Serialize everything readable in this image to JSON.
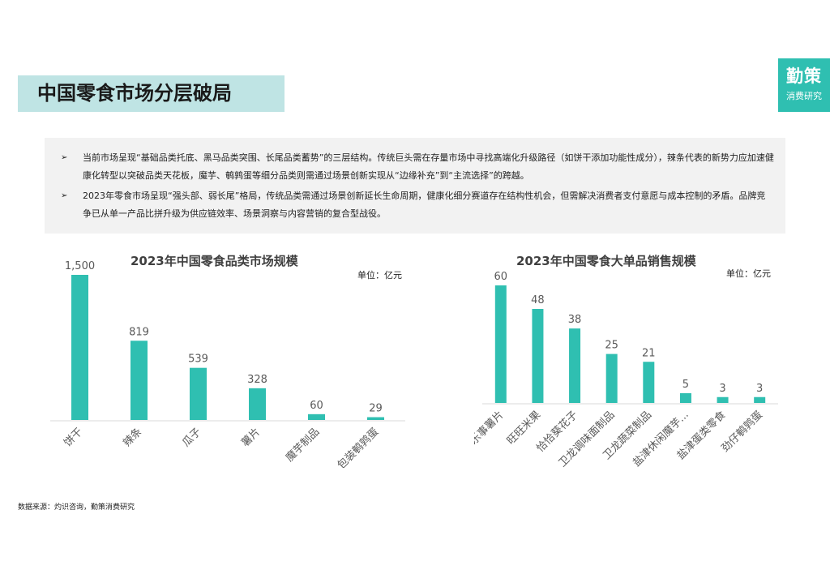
{
  "page": {
    "title": "中国零食市场分层破局",
    "logo": {
      "main": "勤策",
      "sub": "消费研究"
    },
    "bullets": [
      "当前市场呈现“基础品类托底、黑马品类突围、长尾品类蓄势”的三层结构。传统巨头需在存量市场中寻找高端化升级路径（如饼干添加功能性成分），辣条代表的新势力应加速健康化转型以突破品类天花板，魔芋、鹌鹑蛋等细分品类则需通过场景创新实现从“边缘补充”到“主流选择”的跨越。",
      "2023年零食市场呈现“强头部、弱长尾”格局，传统品类需通过场景创新延长生命周期，健康化细分赛道存在结构性机会，但需解决消费者支付意愿与成本控制的矛盾。品牌竞争已从单一产品比拼升级为供应链效率、场景洞察与内容营销的复合型战役。"
    ],
    "bullet_mark": "➢",
    "source": "数据来源：灼识咨询，勤策消费研究"
  },
  "colors": {
    "accent": "#2fbfb1",
    "title_bg": "#bfe4e4",
    "panel_bg": "#f2f2f2"
  },
  "chart_data": [
    {
      "type": "bar",
      "title": "2023年中国零食品类市场规模",
      "unit": "单位：亿元",
      "categories": [
        "饼干",
        "辣条",
        "瓜子",
        "薯片",
        "魔芋制品",
        "包装鹌鹑蛋"
      ],
      "values": [
        1500,
        819,
        539,
        328,
        60,
        29
      ],
      "value_labels": [
        "1,500",
        "819",
        "539",
        "328",
        "60",
        "29"
      ],
      "ylim": [
        0,
        1500
      ],
      "grid": false,
      "legend": "none"
    },
    {
      "type": "bar",
      "title": "2023年中国零食大单品销售规模",
      "unit": "单位：亿元",
      "categories": [
        "乐事薯片",
        "旺旺米果",
        "恰恰葵花子",
        "卫龙调味面制品",
        "卫龙蔬菜制品",
        "盐津休闲魔芋...",
        "盐津蛋类零食",
        "劲仔鹌鹑蛋"
      ],
      "values": [
        60,
        48,
        38,
        25,
        21,
        5,
        3,
        3
      ],
      "value_labels": [
        "60",
        "48",
        "38",
        "25",
        "21",
        "5",
        "3",
        "3"
      ],
      "ylim": [
        0,
        60
      ],
      "grid": false,
      "legend": "none"
    }
  ]
}
